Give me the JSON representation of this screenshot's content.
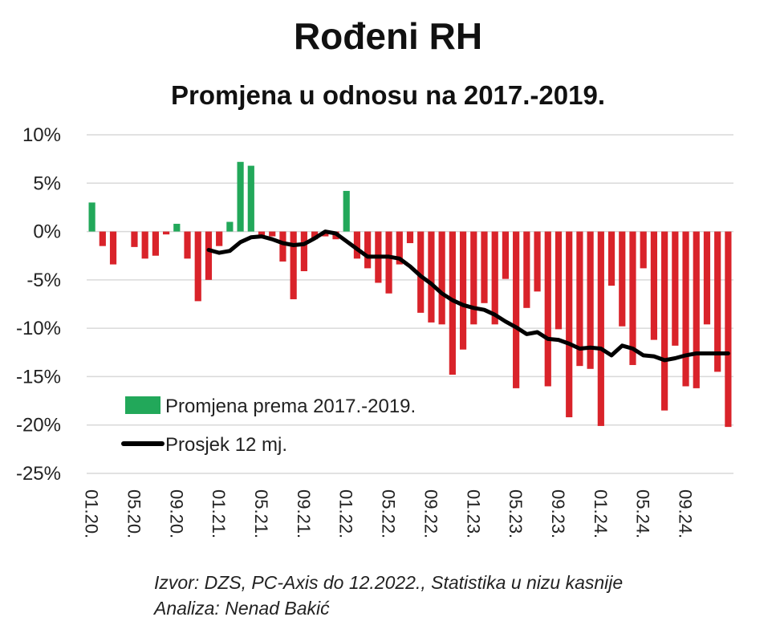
{
  "header": {
    "title": "Rođeni RH",
    "subtitle": "Promjena u odnosu na 2017.-2019."
  },
  "source": {
    "line1": "Izvor: DZS, PC-Axis do 12.2022., Statistika u nizu kasnije",
    "line2": "Analiza: Nenad Bakić"
  },
  "colors": {
    "positive": "#22a85a",
    "negative": "#d9232a",
    "average": "#000000",
    "grid": "#d9d9d9"
  },
  "chart_data": {
    "type": "bar",
    "ylim": [
      -25,
      10
    ],
    "yticks": [
      10,
      5,
      0,
      -5,
      -10,
      -15,
      -20,
      -25
    ],
    "ytick_labels": [
      "10%",
      "5%",
      "0%",
      "-5%",
      "-10%",
      "-15%",
      "-20%",
      "-25%"
    ],
    "x_tick_labels": [
      "01.20.",
      "05.20.",
      "09.20.",
      "01.21.",
      "05.21.",
      "09.21.",
      "01.22.",
      "05.22.",
      "09.22.",
      "01.23.",
      "05.23.",
      "09.23.",
      "01.24.",
      "05.24.",
      "09.24."
    ],
    "x_tick_every": 4,
    "legend_position": "lower-left",
    "grid": true,
    "series": [
      {
        "name": "Promjena prema 2017.-2019.",
        "kind": "bar",
        "values": [
          3.0,
          -1.5,
          -3.4,
          0,
          -1.6,
          -2.8,
          -2.5,
          -0.3,
          0.8,
          -2.8,
          -7.2,
          -5.0,
          -1.5,
          1.0,
          7.2,
          6.8,
          -0.5,
          -0.5,
          -3.1,
          -7.0,
          -4.1,
          -0.8,
          -0.5,
          -0.8,
          4.2,
          -2.8,
          -3.8,
          -5.3,
          -6.4,
          -3.4,
          -1.2,
          -8.4,
          -9.4,
          -9.6,
          -14.8,
          -12.2,
          -9.6,
          -7.4,
          -9.6,
          -4.9,
          -16.2,
          -7.9,
          -6.2,
          -16.0,
          -10.1,
          -19.2,
          -13.9,
          -14.2,
          -20.1,
          -5.6,
          -9.8,
          -13.8,
          -3.8,
          -11.2,
          -18.5,
          -11.8,
          -16.0,
          -16.2,
          -9.6,
          -14.5,
          -20.2
        ]
      },
      {
        "name": "Prosjek 12 mj.",
        "kind": "line",
        "values": [
          null,
          null,
          null,
          null,
          null,
          null,
          null,
          null,
          null,
          null,
          null,
          -1.9,
          -2.2,
          -2.0,
          -1.1,
          -0.6,
          -0.5,
          -0.8,
          -1.2,
          -1.4,
          -1.3,
          -0.7,
          0.0,
          -0.2,
          -1.0,
          -1.8,
          -2.6,
          -2.6,
          -2.6,
          -2.8,
          -3.6,
          -4.6,
          -5.4,
          -6.4,
          -7.1,
          -7.6,
          -7.9,
          -8.1,
          -8.6,
          -9.3,
          -9.9,
          -10.6,
          -10.4,
          -11.1,
          -11.2,
          -11.6,
          -12.1,
          -12.0,
          -12.1,
          -12.8,
          -11.8,
          -12.1,
          -12.8,
          -12.9,
          -13.3,
          -13.1,
          -12.8,
          -12.6,
          -12.6,
          -12.6,
          -12.6
        ]
      }
    ]
  }
}
